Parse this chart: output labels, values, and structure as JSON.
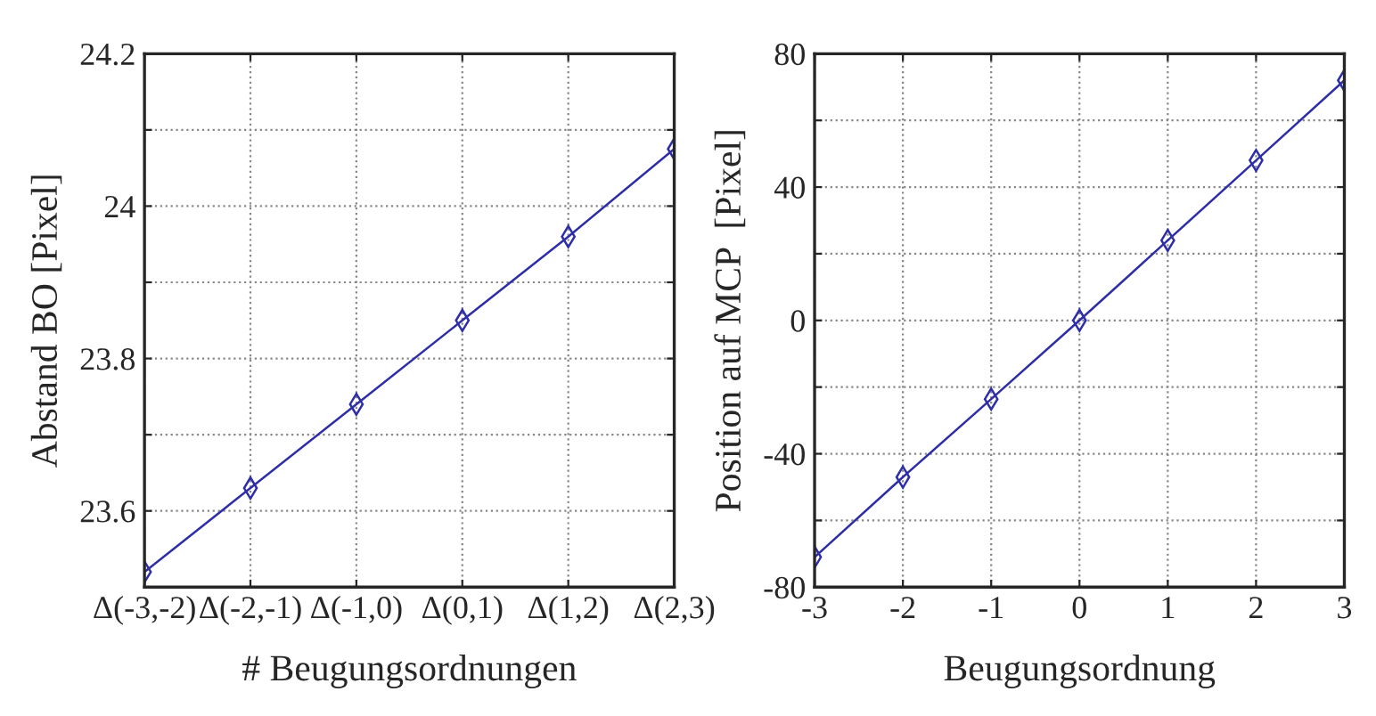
{
  "chart_data": [
    {
      "type": "line",
      "xlabel": "# Beugungsordnungen",
      "ylabel": "Abstand BO [Pixel]",
      "categories": [
        "Δ(-3,-2)",
        "Δ(-2,-1)",
        "Δ(-1,0)",
        "Δ(0,1)",
        "Δ(1,2)",
        "Δ(2,3)"
      ],
      "series": [
        {
          "color": "#2e2ea8",
          "values": [
            23.52,
            23.63,
            23.74,
            23.85,
            23.96,
            24.075
          ]
        }
      ],
      "ylim": [
        23.5,
        24.2
      ],
      "yticks": [
        {
          "value": 23.5,
          "label": null
        },
        23.6,
        {
          "value": 23.7,
          "label": null
        },
        23.8,
        {
          "value": 23.9,
          "label": null
        },
        24,
        {
          "value": 24.1,
          "label": null
        },
        24.2
      ],
      "grid": true,
      "marker": "diamond",
      "line_style": "solid"
    },
    {
      "type": "line",
      "xlabel": "Beugungsordnung",
      "ylabel": "Position auf MCP  [Pixel]",
      "x": [
        -3,
        -2,
        -1,
        0,
        1,
        2,
        3
      ],
      "series": [
        {
          "color": "#2e2ea8",
          "values": [
            -71,
            -47,
            -23.6,
            0,
            24,
            48,
            72
          ]
        }
      ],
      "xlim": [
        -3,
        3
      ],
      "xticks": [
        -3,
        -2,
        -1,
        0,
        1,
        2,
        3
      ],
      "ylim": [
        -80,
        80
      ],
      "yticks": [
        -80,
        {
          "value": -60,
          "label": null
        },
        -40,
        {
          "value": -20,
          "label": null
        },
        0,
        {
          "value": 20,
          "label": null
        },
        40,
        {
          "value": 60,
          "label": null
        },
        80
      ],
      "grid": true,
      "marker": "diamond",
      "line_style": "solid"
    }
  ]
}
